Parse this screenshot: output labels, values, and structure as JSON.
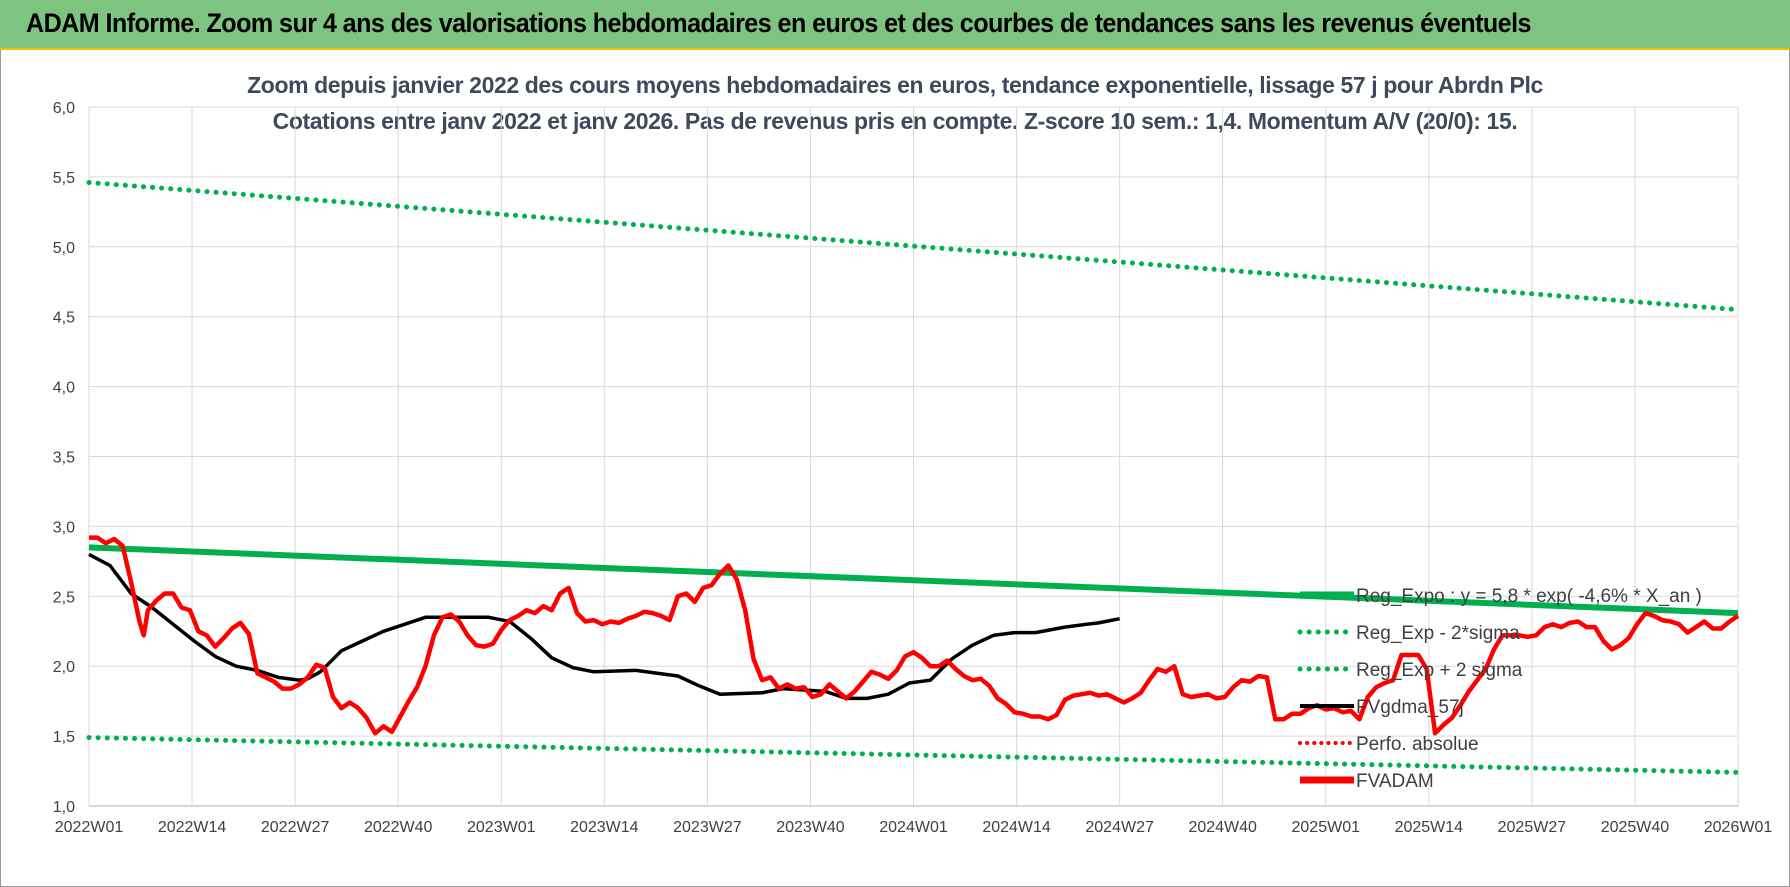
{
  "banner": {
    "title": "ADAM Informe. Zoom sur 4 ans des valorisations hebdomadaires en euros et des courbes de tendances sans les revenus éventuels"
  },
  "chart_data": {
    "type": "line",
    "title": "Zoom depuis janvier 2022 des cours moyens hebdomadaires en euros, tendance exponentielle, lissage 57 j pour Abrdn Plc",
    "subtitle": "Cotations entre janv 2022 et janv 2026. Pas de revenus pris en compte. Z-score 10 sem.: 1,4. Momentum A/V (20/0): 15.",
    "xlabel": "",
    "ylabel": "",
    "ylim": [
      1.0,
      6.0
    ],
    "y_ticks": [
      "1,0",
      "1,5",
      "2,0",
      "2,5",
      "3,0",
      "3,5",
      "4,0",
      "4,5",
      "5,0",
      "5,5",
      "6,0"
    ],
    "x_ticks": [
      "2022W01",
      "2022W14",
      "2022W27",
      "2022W40",
      "2023W01",
      "2023W14",
      "2023W27",
      "2023W40",
      "2024W01",
      "2024W14",
      "2024W27",
      "2024W40",
      "2025W01",
      "2025W14",
      "2025W27",
      "2025W40",
      "2026W01"
    ],
    "grid": true,
    "legend_position": "right",
    "colors": {
      "trend": "#00b050",
      "sigma": "#00b050",
      "smooth": "#000000",
      "perf": "#ff0000",
      "price": "#ff0000"
    },
    "series": [
      {
        "name": "Reg_Expo : y = 5,8 * exp( -4,6% * X_an )",
        "style": "solid-thick",
        "points": [
          [
            0,
            2.85
          ],
          [
            208,
            2.38
          ]
        ]
      },
      {
        "name": "Reg_Exp - 2*sigma",
        "style": "dotted",
        "points": [
          [
            0,
            1.49
          ],
          [
            208,
            1.24
          ]
        ]
      },
      {
        "name": "Reg_Exp + 2 sigma",
        "style": "dotted",
        "points": [
          [
            0,
            5.46
          ],
          [
            208,
            4.55
          ]
        ]
      },
      {
        "name": "FVgdma_57j",
        "style": "solid",
        "points": [
          [
            0,
            2.8
          ],
          [
            5,
            2.72
          ],
          [
            10,
            2.52
          ],
          [
            15,
            2.42
          ],
          [
            20,
            2.3
          ],
          [
            25,
            2.18
          ],
          [
            30,
            2.07
          ],
          [
            35,
            2.0
          ],
          [
            40,
            1.97
          ],
          [
            45,
            1.92
          ],
          [
            50,
            1.9
          ],
          [
            52,
            1.91
          ],
          [
            55,
            1.96
          ],
          [
            60,
            2.11
          ],
          [
            65,
            2.18
          ],
          [
            70,
            2.25
          ],
          [
            75,
            2.3
          ],
          [
            80,
            2.35
          ],
          [
            90,
            2.35
          ],
          [
            95,
            2.35
          ],
          [
            100,
            2.32
          ],
          [
            105,
            2.2
          ],
          [
            110,
            2.06
          ],
          [
            115,
            1.99
          ],
          [
            120,
            1.96
          ],
          [
            130,
            1.97
          ],
          [
            140,
            1.93
          ],
          [
            145,
            1.86
          ],
          [
            150,
            1.8
          ],
          [
            160,
            1.81
          ],
          [
            165,
            1.84
          ],
          [
            170,
            1.83
          ],
          [
            175,
            1.82
          ],
          [
            180,
            1.77
          ],
          [
            185,
            1.77
          ],
          [
            190,
            1.8
          ],
          [
            195,
            1.88
          ],
          [
            200,
            1.9
          ],
          [
            205,
            2.05
          ],
          [
            210,
            2.15
          ],
          [
            215,
            2.22
          ],
          [
            220,
            2.24
          ],
          [
            225,
            2.24
          ],
          [
            232,
            2.28
          ],
          [
            237,
            2.3
          ],
          [
            240,
            2.31
          ],
          [
            245,
            2.34
          ]
        ]
      },
      {
        "name": "Perfo. absolue",
        "style": "dotted",
        "points": []
      },
      {
        "name": "FVADAM",
        "style": "solid-thick",
        "points": [
          [
            0,
            2.92
          ],
          [
            2,
            2.92
          ],
          [
            4,
            2.88
          ],
          [
            6,
            2.91
          ],
          [
            8,
            2.86
          ],
          [
            10,
            2.6
          ],
          [
            12,
            2.32
          ],
          [
            13,
            2.22
          ],
          [
            14,
            2.4
          ],
          [
            16,
            2.47
          ],
          [
            18,
            2.52
          ],
          [
            20,
            2.52
          ],
          [
            22,
            2.42
          ],
          [
            24,
            2.4
          ],
          [
            26,
            2.25
          ],
          [
            28,
            2.22
          ],
          [
            30,
            2.14
          ],
          [
            32,
            2.2
          ],
          [
            34,
            2.27
          ],
          [
            36,
            2.31
          ],
          [
            38,
            2.23
          ],
          [
            40,
            1.95
          ],
          [
            42,
            1.92
          ],
          [
            44,
            1.89
          ],
          [
            46,
            1.84
          ],
          [
            48,
            1.84
          ],
          [
            50,
            1.87
          ],
          [
            52,
            1.92
          ],
          [
            54,
            2.01
          ],
          [
            56,
            1.99
          ],
          [
            58,
            1.78
          ],
          [
            60,
            1.7
          ],
          [
            62,
            1.74
          ],
          [
            64,
            1.7
          ],
          [
            66,
            1.63
          ],
          [
            68,
            1.52
          ],
          [
            70,
            1.57
          ],
          [
            72,
            1.53
          ],
          [
            74,
            1.64
          ],
          [
            76,
            1.75
          ],
          [
            78,
            1.85
          ],
          [
            80,
            2.0
          ],
          [
            82,
            2.22
          ],
          [
            84,
            2.35
          ],
          [
            86,
            2.37
          ],
          [
            88,
            2.32
          ],
          [
            90,
            2.22
          ],
          [
            92,
            2.15
          ],
          [
            94,
            2.14
          ],
          [
            96,
            2.16
          ],
          [
            98,
            2.26
          ],
          [
            100,
            2.33
          ],
          [
            102,
            2.36
          ],
          [
            104,
            2.4
          ],
          [
            106,
            2.38
          ],
          [
            108,
            2.43
          ],
          [
            110,
            2.4
          ],
          [
            112,
            2.52
          ],
          [
            114,
            2.56
          ],
          [
            116,
            2.38
          ],
          [
            118,
            2.32
          ],
          [
            120,
            2.33
          ],
          [
            122,
            2.3
          ],
          [
            124,
            2.32
          ],
          [
            126,
            2.31
          ],
          [
            128,
            2.34
          ],
          [
            130,
            2.36
          ],
          [
            132,
            2.39
          ],
          [
            134,
            2.38
          ],
          [
            136,
            2.36
          ],
          [
            138,
            2.33
          ],
          [
            140,
            2.5
          ],
          [
            142,
            2.52
          ],
          [
            144,
            2.46
          ],
          [
            146,
            2.56
          ],
          [
            148,
            2.58
          ],
          [
            150,
            2.66
          ],
          [
            152,
            2.72
          ],
          [
            154,
            2.62
          ],
          [
            156,
            2.4
          ],
          [
            158,
            2.05
          ],
          [
            160,
            1.9
          ],
          [
            162,
            1.92
          ],
          [
            164,
            1.84
          ],
          [
            166,
            1.87
          ],
          [
            168,
            1.84
          ],
          [
            170,
            1.85
          ],
          [
            172,
            1.78
          ],
          [
            174,
            1.8
          ],
          [
            176,
            1.87
          ],
          [
            178,
            1.82
          ],
          [
            180,
            1.77
          ],
          [
            182,
            1.82
          ],
          [
            184,
            1.89
          ],
          [
            186,
            1.96
          ],
          [
            188,
            1.94
          ],
          [
            190,
            1.91
          ],
          [
            192,
            1.97
          ],
          [
            194,
            2.07
          ],
          [
            196,
            2.1
          ],
          [
            198,
            2.06
          ],
          [
            200,
            2.0
          ],
          [
            202,
            2.0
          ],
          [
            204,
            2.04
          ],
          [
            206,
            1.98
          ],
          [
            208,
            1.93
          ],
          [
            210,
            1.9
          ],
          [
            212,
            1.91
          ],
          [
            214,
            1.86
          ],
          [
            216,
            1.77
          ],
          [
            218,
            1.73
          ],
          [
            220,
            1.67
          ],
          [
            222,
            1.66
          ],
          [
            224,
            1.64
          ],
          [
            226,
            1.64
          ],
          [
            228,
            1.62
          ],
          [
            230,
            1.65
          ],
          [
            232,
            1.76
          ],
          [
            234,
            1.79
          ],
          [
            236,
            1.8
          ],
          [
            238,
            1.81
          ],
          [
            240,
            1.79
          ],
          [
            242,
            1.8
          ],
          [
            244,
            1.77
          ],
          [
            246,
            1.74
          ],
          [
            248,
            1.77
          ],
          [
            250,
            1.81
          ],
          [
            252,
            1.9
          ],
          [
            254,
            1.98
          ],
          [
            256,
            1.96
          ],
          [
            258,
            2.0
          ],
          [
            260,
            1.8
          ],
          [
            262,
            1.78
          ],
          [
            264,
            1.79
          ],
          [
            266,
            1.8
          ],
          [
            268,
            1.77
          ],
          [
            270,
            1.78
          ],
          [
            272,
            1.85
          ],
          [
            274,
            1.9
          ],
          [
            276,
            1.89
          ],
          [
            278,
            1.93
          ],
          [
            280,
            1.92
          ],
          [
            282,
            1.62
          ],
          [
            284,
            1.62
          ],
          [
            286,
            1.66
          ],
          [
            288,
            1.66
          ],
          [
            290,
            1.7
          ],
          [
            292,
            1.72
          ],
          [
            294,
            1.69
          ],
          [
            296,
            1.7
          ],
          [
            298,
            1.67
          ],
          [
            300,
            1.68
          ],
          [
            302,
            1.62
          ],
          [
            304,
            1.78
          ],
          [
            306,
            1.85
          ],
          [
            308,
            1.88
          ],
          [
            310,
            1.9
          ],
          [
            312,
            2.08
          ],
          [
            314,
            2.08
          ],
          [
            316,
            2.08
          ],
          [
            318,
            1.98
          ],
          [
            320,
            1.52
          ],
          [
            322,
            1.58
          ],
          [
            324,
            1.63
          ],
          [
            326,
            1.72
          ],
          [
            328,
            1.82
          ],
          [
            330,
            1.9
          ],
          [
            332,
            1.98
          ],
          [
            334,
            2.12
          ],
          [
            336,
            2.22
          ],
          [
            338,
            2.22
          ],
          [
            340,
            2.22
          ],
          [
            342,
            2.21
          ],
          [
            344,
            2.22
          ],
          [
            346,
            2.28
          ],
          [
            348,
            2.3
          ],
          [
            350,
            2.28
          ],
          [
            352,
            2.31
          ],
          [
            354,
            2.32
          ],
          [
            356,
            2.28
          ],
          [
            358,
            2.28
          ],
          [
            360,
            2.18
          ],
          [
            362,
            2.12
          ],
          [
            364,
            2.15
          ],
          [
            366,
            2.2
          ],
          [
            368,
            2.3
          ],
          [
            370,
            2.38
          ],
          [
            372,
            2.36
          ],
          [
            374,
            2.33
          ],
          [
            376,
            2.32
          ],
          [
            378,
            2.3
          ],
          [
            380,
            2.24
          ],
          [
            382,
            2.28
          ],
          [
            384,
            2.32
          ],
          [
            386,
            2.27
          ],
          [
            388,
            2.27
          ],
          [
            390,
            2.32
          ],
          [
            392,
            2.36
          ]
        ]
      }
    ]
  }
}
